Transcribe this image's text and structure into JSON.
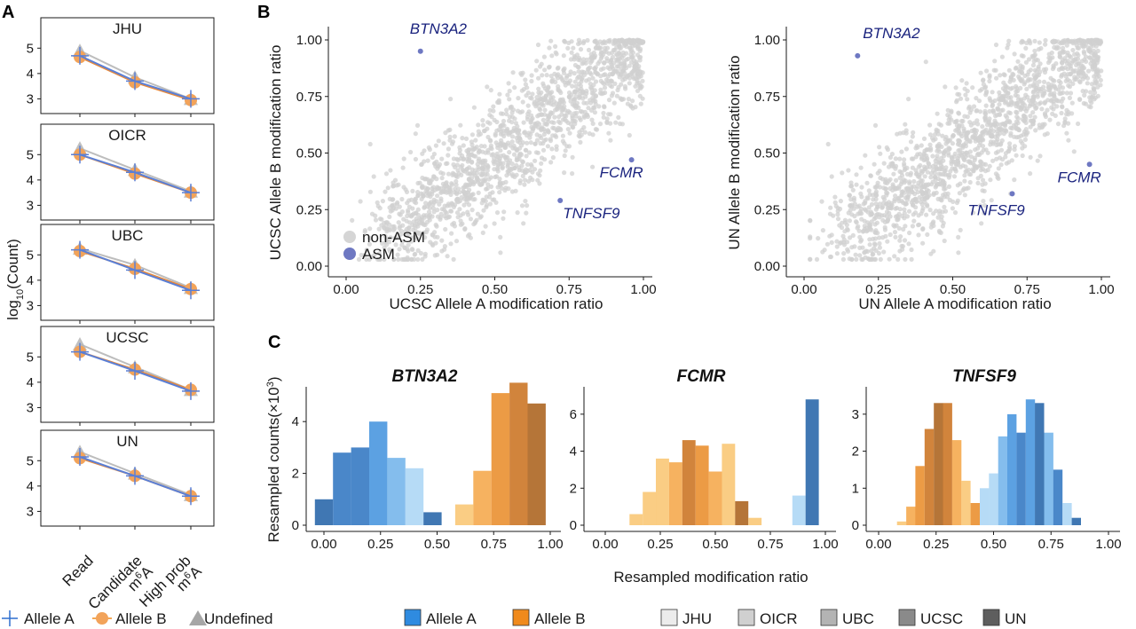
{
  "panels": {
    "a": "A",
    "b": "B",
    "c": "C"
  },
  "panel_a": {
    "ylabel_main": "log",
    "ylabel_sub": "10",
    "ylabel_tail": "(Count)",
    "x_labels": [
      {
        "line1": "Read",
        "line2": "",
        "sup": "",
        "line2_tail": ""
      },
      {
        "line1": "Candidate",
        "line2": "m",
        "sup": "6",
        "line2_tail": "A"
      },
      {
        "line1": "High prob",
        "line2": "m",
        "sup": "6",
        "line2_tail": "A"
      }
    ],
    "y_ticks": [
      "3",
      "4",
      "5"
    ]
  },
  "panel_b": {
    "left_xlabel": "UCSC Allele A modification ratio",
    "left_ylabel": "UCSC Allele B modification ratio",
    "right_xlabel": "UN Allele A modification ratio",
    "right_ylabel": "UN Allele B modification ratio",
    "ticks": [
      "0.00",
      "0.25",
      "0.50",
      "0.75",
      "1.00"
    ],
    "legend": [
      "non-ASM",
      "ASM"
    ]
  },
  "panel_c": {
    "ylabel": "Resampled counts(×10",
    "ylabel_sup": "3",
    "ylabel_tail": ")",
    "xlabel": "Resampled modification ratio",
    "x_ticks": [
      "0.00",
      "0.25",
      "0.50",
      "0.75",
      "1.00"
    ]
  },
  "legends": {
    "allele_markers": [
      "Allele A",
      "Allele B",
      "Undefined"
    ],
    "allele_fill": [
      "Allele A",
      "Allele B"
    ],
    "centers": [
      "JHU",
      "OICR",
      "UBC",
      "UCSC",
      "UN"
    ]
  },
  "colors": {
    "allele_a": "#2f6fcf",
    "allele_b": "#f08a1c",
    "undefined": "#a6a6a6",
    "non_asm": "#d5d5d5",
    "asm": "#6e78c2",
    "gene_label": "#1a237e"
  },
  "chart_data": [
    {
      "type": "line",
      "panel": "A",
      "categories": [
        "Read",
        "Candidate m6A",
        "High prob m6A"
      ],
      "ylabel": "log10(Count)",
      "ylim": [
        2.7,
        5.5
      ],
      "facets": [
        {
          "name": "JHU",
          "series": [
            {
              "name": "Allele A",
              "values": [
                4.7,
                3.7,
                3.0
              ]
            },
            {
              "name": "Allele B",
              "values": [
                4.65,
                3.65,
                2.95
              ]
            },
            {
              "name": "Undefined",
              "values": [
                4.9,
                3.85,
                3.0
              ]
            }
          ]
        },
        {
          "name": "OICR",
          "series": [
            {
              "name": "Allele A",
              "values": [
                5.0,
                4.3,
                3.5
              ]
            },
            {
              "name": "Allele B",
              "values": [
                5.0,
                4.25,
                3.5
              ]
            },
            {
              "name": "Undefined",
              "values": [
                5.25,
                4.4,
                3.55
              ]
            }
          ]
        },
        {
          "name": "UBC",
          "series": [
            {
              "name": "Allele A",
              "values": [
                5.2,
                4.4,
                3.6
              ]
            },
            {
              "name": "Allele B",
              "values": [
                5.15,
                4.45,
                3.65
              ]
            },
            {
              "name": "Undefined",
              "values": [
                5.25,
                4.6,
                3.7
              ]
            }
          ]
        },
        {
          "name": "UCSC",
          "series": [
            {
              "name": "Allele A",
              "values": [
                5.2,
                4.45,
                3.65
              ]
            },
            {
              "name": "Allele B",
              "values": [
                5.2,
                4.5,
                3.7
              ]
            },
            {
              "name": "Undefined",
              "values": [
                5.5,
                4.6,
                3.7
              ]
            }
          ]
        },
        {
          "name": "UN",
          "series": [
            {
              "name": "Allele A",
              "values": [
                5.15,
                4.4,
                3.6
              ]
            },
            {
              "name": "Allele B",
              "values": [
                5.1,
                4.4,
                3.6
              ]
            },
            {
              "name": "Undefined",
              "values": [
                5.35,
                4.5,
                3.65
              ]
            }
          ]
        }
      ]
    },
    {
      "type": "scatter",
      "panel": "B-left",
      "xlabel": "UCSC Allele A modification ratio",
      "ylabel": "UCSC Allele B modification ratio",
      "xlim": [
        -0.05,
        1.03
      ],
      "ylim": [
        -0.05,
        1.03
      ],
      "legend_position": "bottom-left",
      "highlighted": [
        {
          "label": "BTN3A2",
          "x": 0.25,
          "y": 0.95
        },
        {
          "label": "FCMR",
          "x": 0.96,
          "y": 0.47
        },
        {
          "label": "TNFSF9",
          "x": 0.72,
          "y": 0.29
        }
      ]
    },
    {
      "type": "scatter",
      "panel": "B-right",
      "xlabel": "UN Allele A modification ratio",
      "ylabel": "UN Allele B modification ratio",
      "xlim": [
        -0.05,
        1.03
      ],
      "ylim": [
        -0.05,
        1.03
      ],
      "highlighted": [
        {
          "label": "BTN3A2",
          "x": 0.18,
          "y": 0.93
        },
        {
          "label": "FCMR",
          "x": 0.96,
          "y": 0.45
        },
        {
          "label": "TNFSF9",
          "x": 0.7,
          "y": 0.32
        }
      ]
    },
    {
      "type": "bar",
      "panel": "C",
      "title": "BTN3A2",
      "ylim": [
        0,
        5
      ],
      "y_ticks": [
        0,
        2,
        4
      ],
      "bin_width": 0.08,
      "bars": [
        {
          "allele": "A",
          "center": "UN",
          "x": 0.0,
          "h": 1.0
        },
        {
          "allele": "A",
          "center": "UCSC",
          "x": 0.08,
          "h": 2.8
        },
        {
          "allele": "A",
          "center": "UCSC",
          "x": 0.16,
          "h": 3.0
        },
        {
          "allele": "A",
          "center": "UBC",
          "x": 0.24,
          "h": 4.0
        },
        {
          "allele": "A",
          "center": "OICR",
          "x": 0.32,
          "h": 2.6
        },
        {
          "allele": "A",
          "center": "JHU",
          "x": 0.4,
          "h": 2.2
        },
        {
          "allele": "A",
          "center": "UN",
          "x": 0.48,
          "h": 0.5
        },
        {
          "allele": "B",
          "center": "JHU",
          "x": 0.62,
          "h": 0.8
        },
        {
          "allele": "B",
          "center": "OICR",
          "x": 0.7,
          "h": 2.1
        },
        {
          "allele": "B",
          "center": "UBC",
          "x": 0.78,
          "h": 5.1
        },
        {
          "allele": "B",
          "center": "UCSC",
          "x": 0.86,
          "h": 5.5
        },
        {
          "allele": "B",
          "center": "UN",
          "x": 0.94,
          "h": 4.7
        }
      ]
    },
    {
      "type": "bar",
      "panel": "C",
      "title": "FCMR",
      "ylim": [
        0,
        7
      ],
      "y_ticks": [
        0,
        2,
        4,
        6
      ],
      "bin_width": 0.06,
      "bars": [
        {
          "allele": "B",
          "center": "JHU",
          "x": 0.14,
          "h": 0.6
        },
        {
          "allele": "B",
          "center": "JHU",
          "x": 0.2,
          "h": 1.8
        },
        {
          "allele": "B",
          "center": "JHU",
          "x": 0.26,
          "h": 3.6
        },
        {
          "allele": "B",
          "center": "OICR",
          "x": 0.32,
          "h": 3.4
        },
        {
          "allele": "B",
          "center": "UCSC",
          "x": 0.38,
          "h": 4.6
        },
        {
          "allele": "B",
          "center": "UBC",
          "x": 0.44,
          "h": 4.3
        },
        {
          "allele": "B",
          "center": "OICR",
          "x": 0.5,
          "h": 2.9
        },
        {
          "allele": "B",
          "center": "JHU",
          "x": 0.56,
          "h": 4.4
        },
        {
          "allele": "B",
          "center": "UN",
          "x": 0.62,
          "h": 1.3
        },
        {
          "allele": "B",
          "center": "JHU",
          "x": 0.68,
          "h": 0.4
        },
        {
          "allele": "A",
          "center": "JHU",
          "x": 0.88,
          "h": 1.6
        },
        {
          "allele": "A",
          "center": "UN",
          "x": 0.94,
          "h": 6.8
        }
      ]
    },
    {
      "type": "bar",
      "panel": "C",
      "title": "TNFSF9",
      "ylim": [
        0,
        3.5
      ],
      "y_ticks": [
        0,
        1,
        2,
        3
      ],
      "bin_width": 0.04,
      "bars": [
        {
          "allele": "B",
          "center": "JHU",
          "x": 0.1,
          "h": 0.1
        },
        {
          "allele": "B",
          "center": "OICR",
          "x": 0.14,
          "h": 0.5
        },
        {
          "allele": "B",
          "center": "UBC",
          "x": 0.18,
          "h": 1.6
        },
        {
          "allele": "B",
          "center": "UCSC",
          "x": 0.22,
          "h": 2.6
        },
        {
          "allele": "B",
          "center": "UN",
          "x": 0.26,
          "h": 3.3
        },
        {
          "allele": "B",
          "center": "UCSC",
          "x": 0.3,
          "h": 3.3
        },
        {
          "allele": "B",
          "center": "OICR",
          "x": 0.34,
          "h": 2.3
        },
        {
          "allele": "B",
          "center": "JHU",
          "x": 0.38,
          "h": 1.2
        },
        {
          "allele": "B",
          "center": "UBC",
          "x": 0.42,
          "h": 0.6
        },
        {
          "allele": "A",
          "center": "JHU",
          "x": 0.46,
          "h": 1.0
        },
        {
          "allele": "A",
          "center": "JHU",
          "x": 0.5,
          "h": 1.4
        },
        {
          "allele": "A",
          "center": "OICR",
          "x": 0.54,
          "h": 2.4
        },
        {
          "allele": "A",
          "center": "UBC",
          "x": 0.58,
          "h": 3.0
        },
        {
          "allele": "A",
          "center": "UCSC",
          "x": 0.62,
          "h": 2.5
        },
        {
          "allele": "A",
          "center": "UBC",
          "x": 0.66,
          "h": 3.4
        },
        {
          "allele": "A",
          "center": "UN",
          "x": 0.7,
          "h": 3.3
        },
        {
          "allele": "A",
          "center": "OICR",
          "x": 0.74,
          "h": 2.5
        },
        {
          "allele": "A",
          "center": "UCSC",
          "x": 0.78,
          "h": 1.5
        },
        {
          "allele": "A",
          "center": "JHU",
          "x": 0.82,
          "h": 0.6
        },
        {
          "allele": "A",
          "center": "UN",
          "x": 0.86,
          "h": 0.2
        }
      ]
    }
  ]
}
